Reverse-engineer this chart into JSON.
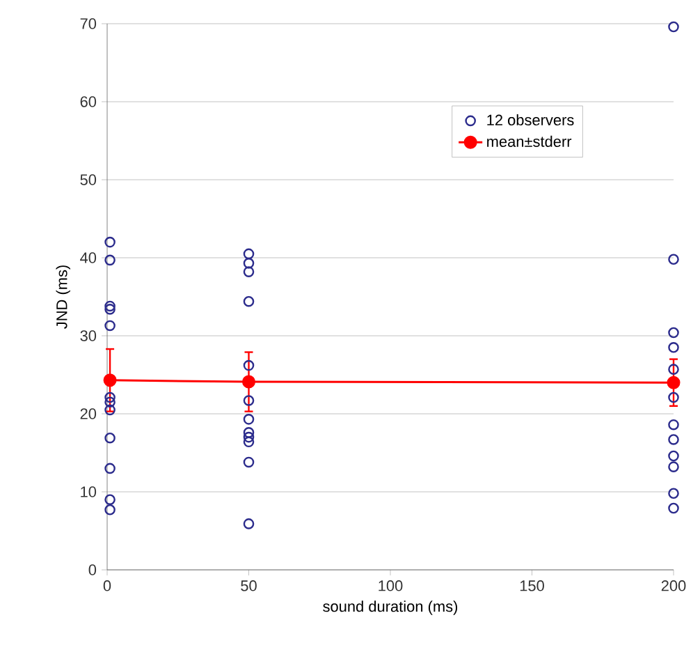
{
  "chart_data": {
    "type": "scatter",
    "xlabel": "sound duration (ms)",
    "ylabel": "JND (ms)",
    "xlim": [
      0,
      200
    ],
    "ylim": [
      0,
      70
    ],
    "xticks": [
      0,
      50,
      100,
      150,
      200
    ],
    "yticks": [
      0,
      10,
      20,
      30,
      40,
      50,
      60,
      70
    ],
    "grid": "y",
    "legend": "top right",
    "series": [
      {
        "name": "12 observers",
        "marker": "circle",
        "color": "#2b2b8c",
        "x": [
          1,
          1,
          1,
          1,
          1,
          1,
          1,
          1,
          1,
          1,
          1,
          1,
          50,
          50,
          50,
          50,
          50,
          50,
          50,
          50,
          50,
          50,
          50,
          50,
          200,
          200,
          200,
          200,
          200,
          200,
          200,
          200,
          200,
          200,
          200,
          200
        ],
        "values": [
          42.0,
          39.7,
          33.8,
          33.4,
          31.3,
          22.1,
          21.5,
          20.5,
          16.9,
          13.0,
          9.0,
          7.7,
          40.5,
          39.3,
          38.2,
          34.4,
          26.2,
          21.7,
          19.3,
          17.6,
          17.0,
          16.4,
          13.8,
          5.9,
          69.6,
          39.8,
          30.4,
          28.5,
          25.7,
          22.1,
          18.6,
          16.7,
          14.6,
          13.2,
          9.8,
          7.9
        ]
      },
      {
        "name": "mean±stderr",
        "type": "line",
        "marker": "circle",
        "color": "#ff0000",
        "x": [
          1,
          50,
          200
        ],
        "values": [
          24.3,
          24.1,
          24.0
        ],
        "errors": [
          4.0,
          3.8,
          3.0
        ]
      }
    ]
  }
}
